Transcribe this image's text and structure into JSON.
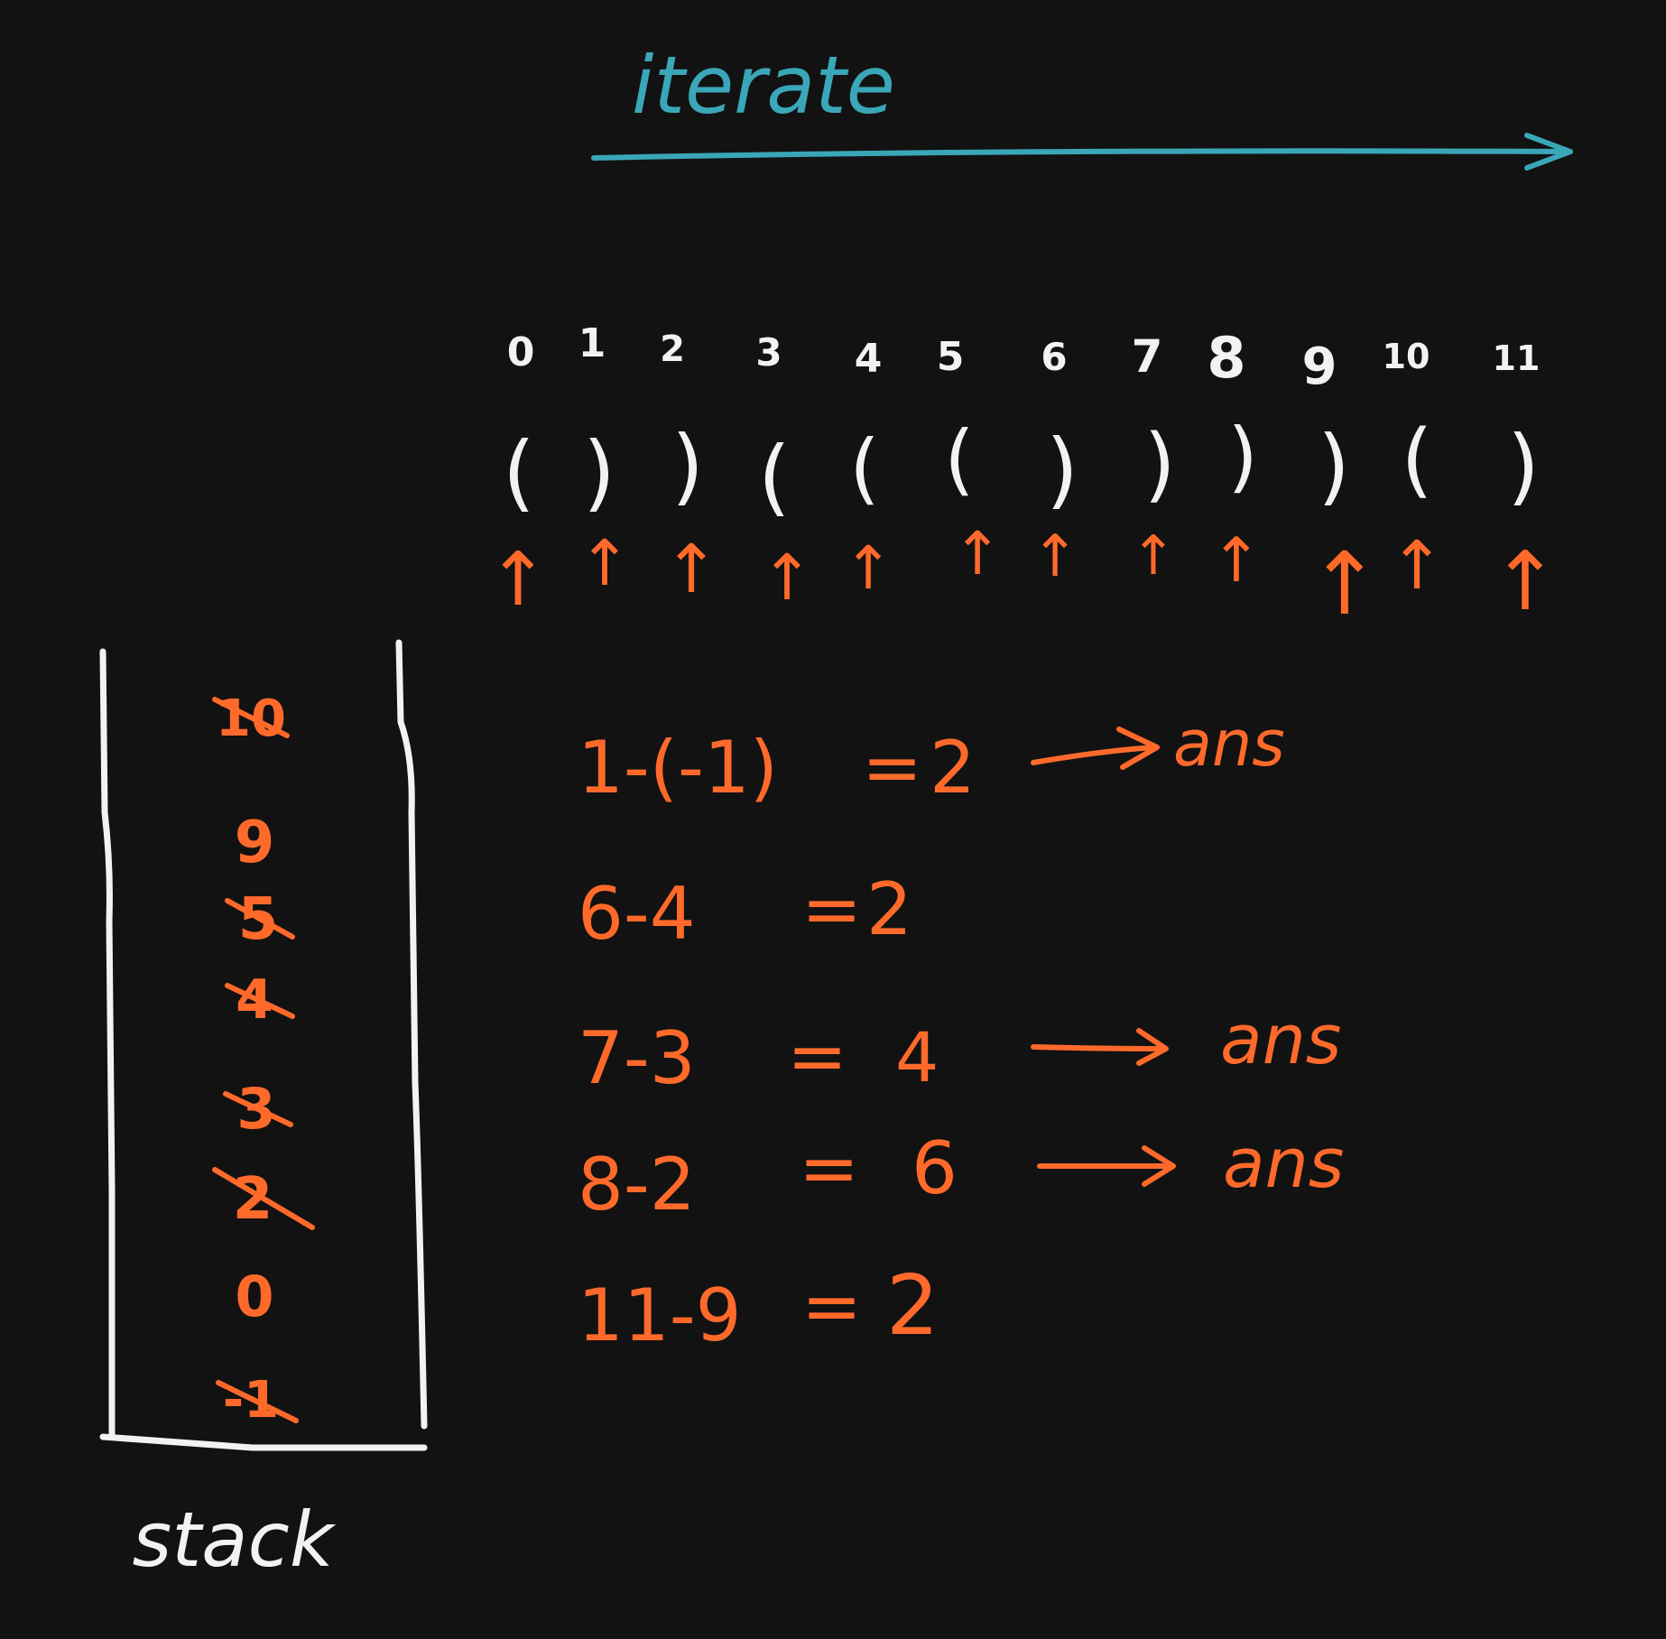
{
  "colors": {
    "background": "#121212",
    "chalk_white": "#f2f2f2",
    "chalk_orange": "#ff6a2b",
    "chalk_teal": "#3aa7b8"
  },
  "header": {
    "label": "iterate"
  },
  "sequence": {
    "indices": [
      "0",
      "1",
      "2",
      "3",
      "4",
      "5",
      "6",
      "7",
      "8",
      "9",
      "10",
      "11"
    ],
    "chars": [
      "(",
      ")",
      ")",
      "(",
      "(",
      "(",
      ")",
      ")",
      ")",
      ")",
      "(",
      ")"
    ],
    "pointer_glyph": "↑"
  },
  "stack": {
    "label": "stack",
    "items": [
      {
        "value": "10",
        "crossed": true
      },
      {
        "value": "9",
        "crossed": false
      },
      {
        "value": "5",
        "crossed": true
      },
      {
        "value": "4",
        "crossed": true
      },
      {
        "value": "3",
        "crossed": true
      },
      {
        "value": "2",
        "crossed": true
      },
      {
        "value": "0",
        "crossed": false
      },
      {
        "value": "-1",
        "crossed": true
      }
    ]
  },
  "calculations": [
    {
      "expr": "1-(-1)",
      "eq": "=",
      "result": "2",
      "arrow": true,
      "target": "ans"
    },
    {
      "expr": "6-4",
      "eq": "=",
      "result": "2",
      "arrow": false,
      "target": ""
    },
    {
      "expr": "7-3",
      "eq": "=",
      "result": "4",
      "arrow": true,
      "target": "ans"
    },
    {
      "expr": "8-2",
      "eq": "=",
      "result": "6",
      "arrow": true,
      "target": "ans"
    },
    {
      "expr": "11-9",
      "eq": "=",
      "result": "2",
      "arrow": false,
      "target": ""
    }
  ]
}
